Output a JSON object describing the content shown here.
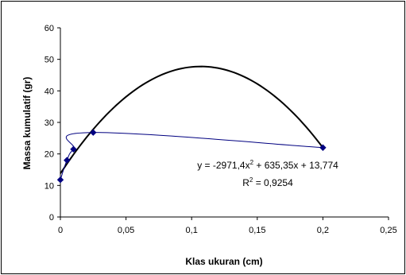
{
  "chart_data": {
    "type": "scatter",
    "xlabel": "Klas ukuran (cm)",
    "ylabel": "Massa kumulatif (gr)",
    "xlim": [
      0,
      0.25
    ],
    "ylim": [
      0,
      60
    ],
    "x_ticks": [
      "0",
      "0,05",
      "0,1",
      "0,15",
      "0,2",
      "0,25"
    ],
    "y_ticks": [
      "0",
      "10",
      "20",
      "30",
      "40",
      "50",
      "60"
    ],
    "grid": false,
    "legend": "none",
    "series": [
      {
        "type": "line-with-markers",
        "color": "#000080",
        "marker": "diamond",
        "x": [
          0,
          0.005,
          0.01,
          0.025,
          0.2
        ],
        "y": [
          11.8,
          18.0,
          21.5,
          26.8,
          22.0
        ]
      }
    ],
    "trendline": {
      "type": "polynomial-2",
      "color": "#000000",
      "coefficients": [
        -2971.4,
        635.35,
        13.774
      ],
      "x_range": [
        0,
        0.2
      ],
      "equation_base": "y = -2971,4x",
      "equation_sup": "2",
      "equation_rest": " + 635,35x + 13,774",
      "r2_base": "R",
      "r2_sup": "2",
      "r2_rest": " = 0,9254"
    }
  }
}
